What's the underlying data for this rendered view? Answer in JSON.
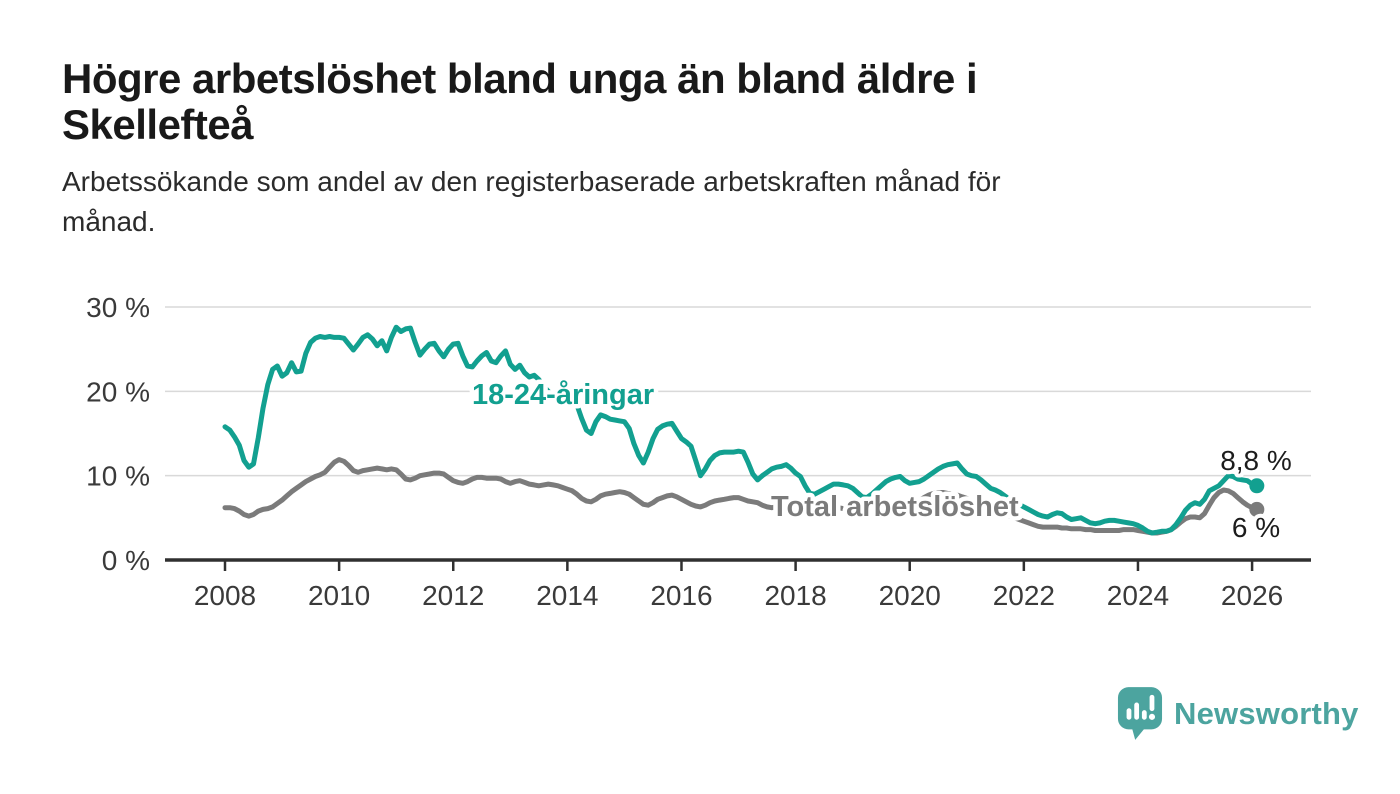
{
  "header": {
    "title": "Högre arbetslöshet bland unga än bland äldre i\nSkellefteå",
    "subtitle": "Arbetssökande som andel av den registerbaserade arbetskraften månad för\nmånad."
  },
  "chart_data": {
    "type": "line",
    "title": "Högre arbetslöshet bland unga än bland äldre i Skellefteå",
    "subtitle": "Arbetssökande som andel av den registerbaserade arbetskraften månad för månad.",
    "unit": "%",
    "x_start_year": 2008,
    "x_step_months": 1,
    "x_end": "2026-02",
    "ylim": [
      0,
      30
    ],
    "yticks": [
      0,
      10,
      20,
      30
    ],
    "ytick_labels": [
      "0 %",
      "10 %",
      "20 %",
      "30 %"
    ],
    "xticks": [
      2008,
      2010,
      2012,
      2014,
      2016,
      2018,
      2020,
      2022,
      2024,
      2026
    ],
    "grid": "horizontal",
    "legend_position": "inline-labels",
    "series": [
      {
        "name": "18-24-åringar",
        "color": "#12A090",
        "end_label": "8,8 %",
        "end_value": 8.8,
        "values": [
          15.8,
          15.4,
          14.6,
          13.6,
          11.8,
          11.0,
          11.4,
          14.5,
          18.0,
          20.8,
          22.6,
          23.0,
          21.8,
          22.2,
          23.4,
          22.3,
          22.4,
          24.5,
          25.8,
          26.3,
          26.5,
          26.4,
          26.5,
          26.4,
          26.4,
          26.3,
          25.6,
          24.9,
          25.6,
          26.4,
          26.7,
          26.2,
          25.4,
          26.0,
          24.8,
          26.4,
          27.6,
          27.1,
          27.4,
          27.5,
          25.8,
          24.3,
          25.0,
          25.6,
          25.7,
          24.8,
          24.1,
          25.0,
          25.6,
          25.7,
          24.2,
          23.0,
          22.9,
          23.6,
          24.2,
          24.6,
          23.6,
          23.4,
          24.2,
          24.8,
          23.2,
          22.6,
          23.1,
          22.2,
          21.7,
          21.9,
          21.4,
          20.6,
          20.0,
          19.4,
          19.0,
          18.7,
          18.5,
          18.6,
          18.4,
          16.8,
          15.4,
          15.0,
          16.4,
          17.2,
          17.0,
          16.7,
          16.6,
          16.5,
          16.4,
          15.6,
          13.8,
          12.4,
          11.5,
          12.8,
          14.4,
          15.5,
          15.9,
          16.1,
          16.2,
          15.3,
          14.4,
          14.0,
          13.5,
          11.8,
          10.0,
          10.8,
          11.8,
          12.4,
          12.7,
          12.8,
          12.8,
          12.8,
          12.9,
          12.8,
          11.6,
          10.2,
          9.5,
          10.0,
          10.4,
          10.8,
          11.0,
          11.1,
          11.3,
          10.9,
          10.3,
          9.9,
          8.8,
          7.9,
          7.8,
          8.1,
          8.4,
          8.7,
          9.0,
          9.0,
          8.9,
          8.8,
          8.5,
          8.0,
          7.5,
          7.4,
          7.8,
          8.3,
          8.8,
          9.3,
          9.6,
          9.8,
          9.9,
          9.4,
          9.1,
          9.2,
          9.3,
          9.6,
          10.0,
          10.4,
          10.8,
          11.1,
          11.3,
          11.4,
          11.5,
          10.8,
          10.2,
          10.0,
          9.9,
          9.5,
          9.0,
          8.5,
          8.3,
          8.0,
          7.6,
          7.2,
          6.9,
          6.6,
          6.3,
          6.0,
          5.7,
          5.4,
          5.2,
          5.1,
          5.4,
          5.6,
          5.5,
          5.1,
          4.8,
          4.9,
          5.0,
          4.7,
          4.4,
          4.3,
          4.4,
          4.6,
          4.7,
          4.7,
          4.6,
          4.5,
          4.4,
          4.3,
          4.1,
          3.8,
          3.4,
          3.2,
          3.3,
          3.4,
          3.4,
          3.6,
          4.2,
          5.0,
          5.9,
          6.5,
          6.8,
          6.6,
          7.2,
          8.2,
          8.5,
          8.8,
          9.4,
          10.0,
          9.9,
          9.6,
          9.5,
          9.4,
          9.0,
          8.8
        ]
      },
      {
        "name": "Total arbetslöshet",
        "color": "#7B7B7B",
        "end_label": "6 %",
        "end_value": 6.0,
        "values": [
          6.2,
          6.2,
          6.1,
          5.8,
          5.4,
          5.2,
          5.4,
          5.8,
          6.0,
          6.1,
          6.3,
          6.7,
          7.1,
          7.6,
          8.1,
          8.5,
          8.9,
          9.3,
          9.6,
          9.9,
          10.1,
          10.4,
          11.0,
          11.6,
          11.9,
          11.7,
          11.2,
          10.6,
          10.4,
          10.6,
          10.7,
          10.8,
          10.9,
          10.8,
          10.7,
          10.8,
          10.7,
          10.2,
          9.6,
          9.5,
          9.7,
          10.0,
          10.1,
          10.2,
          10.3,
          10.3,
          10.2,
          9.8,
          9.4,
          9.2,
          9.1,
          9.3,
          9.6,
          9.8,
          9.8,
          9.7,
          9.7,
          9.7,
          9.6,
          9.3,
          9.1,
          9.3,
          9.4,
          9.2,
          9.0,
          8.9,
          8.8,
          8.9,
          9.0,
          8.9,
          8.8,
          8.6,
          8.4,
          8.2,
          7.8,
          7.3,
          7.0,
          6.9,
          7.2,
          7.6,
          7.8,
          7.9,
          8.0,
          8.1,
          8.0,
          7.8,
          7.4,
          7.0,
          6.6,
          6.5,
          6.8,
          7.2,
          7.4,
          7.6,
          7.7,
          7.5,
          7.2,
          6.9,
          6.6,
          6.4,
          6.3,
          6.5,
          6.8,
          7.0,
          7.1,
          7.2,
          7.3,
          7.4,
          7.4,
          7.2,
          7.0,
          6.9,
          6.8,
          6.5,
          6.3,
          6.2,
          6.3,
          6.4,
          6.5,
          6.4,
          6.2,
          6.0,
          5.8,
          5.7,
          5.8,
          5.9,
          6.0,
          6.1,
          6.2,
          6.2,
          6.1,
          6.0,
          5.9,
          5.8,
          5.7,
          5.7,
          5.8,
          5.9,
          6.0,
          6.1,
          6.2,
          6.2,
          6.2,
          6.3,
          6.4,
          6.6,
          7.0,
          7.4,
          7.7,
          7.9,
          8.0,
          8.0,
          7.9,
          7.8,
          7.7,
          7.5,
          7.3,
          7.1,
          6.9,
          6.7,
          6.4,
          6.2,
          6.0,
          5.8,
          5.5,
          5.2,
          5.0,
          4.8,
          4.6,
          4.4,
          4.2,
          4.0,
          3.9,
          3.9,
          3.9,
          3.9,
          3.8,
          3.8,
          3.7,
          3.7,
          3.7,
          3.6,
          3.6,
          3.5,
          3.5,
          3.5,
          3.5,
          3.5,
          3.5,
          3.6,
          3.6,
          3.6,
          3.5,
          3.4,
          3.3,
          3.2,
          3.2,
          3.3,
          3.4,
          3.6,
          4.0,
          4.5,
          4.9,
          5.1,
          5.1,
          5.0,
          5.5,
          6.5,
          7.4,
          8.0,
          8.3,
          8.2,
          7.9,
          7.4,
          6.9,
          6.5,
          6.2,
          6.0
        ]
      }
    ]
  },
  "footer": {
    "brand": "Newsworthy",
    "brand_color": "#4CA49F"
  }
}
